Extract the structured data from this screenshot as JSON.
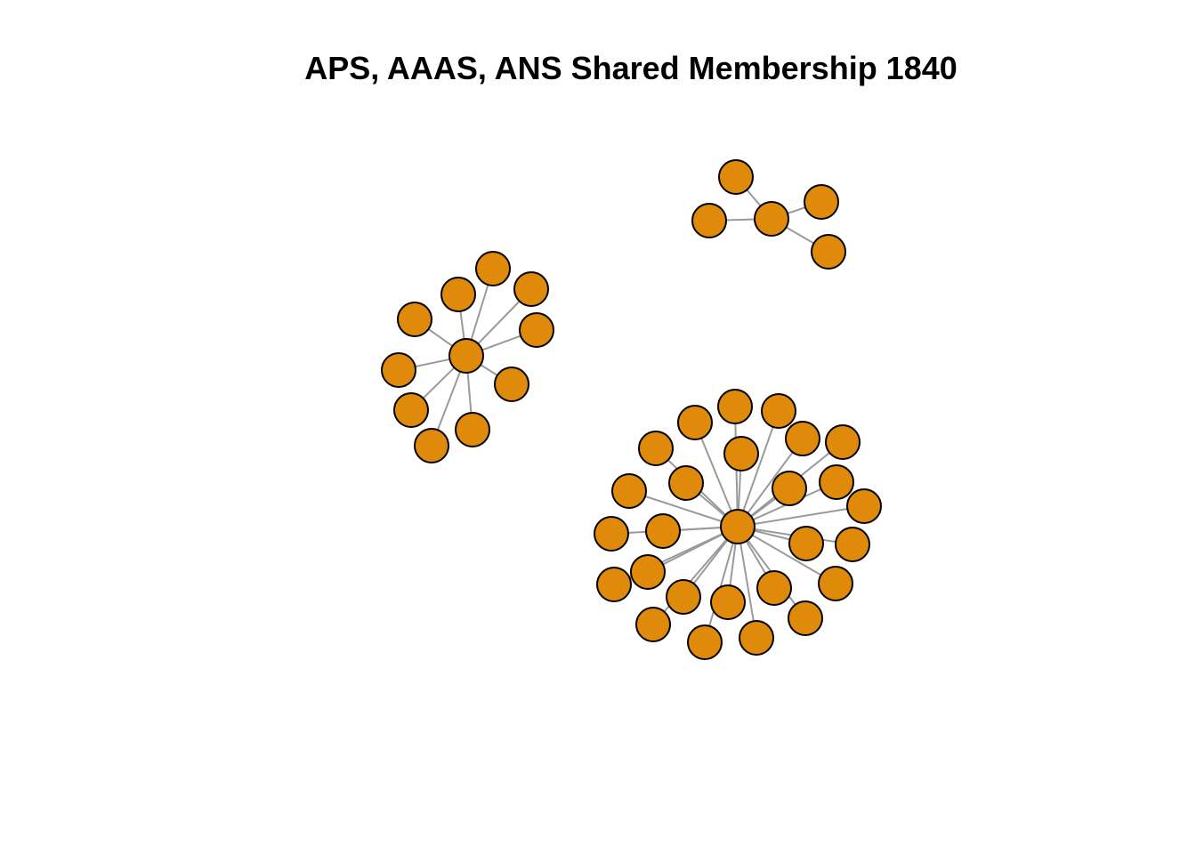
{
  "title": "APS, AAAS, ANS Shared Membership 1840",
  "colors": {
    "node_fill": "#e08a0b",
    "node_stroke": "#000000",
    "edge": "#9a9a9a",
    "background": "#ffffff"
  },
  "network": {
    "components": [
      {
        "name": "small-cluster",
        "hub": "s-hub",
        "leaves": [
          "s1",
          "s2",
          "s3",
          "s4"
        ]
      },
      {
        "name": "middle-cluster",
        "hub": "m-hub",
        "leaves": [
          "m1",
          "m2",
          "m3",
          "m4",
          "m5",
          "m6",
          "m7",
          "m8",
          "m9",
          "m10"
        ]
      },
      {
        "name": "large-cluster",
        "hub": "l-hub",
        "leaves": [
          "l1",
          "l2",
          "l3",
          "l4",
          "l5",
          "l6",
          "l7",
          "l8",
          "l9",
          "l10",
          "l11",
          "l12",
          "l13",
          "l14",
          "l15",
          "l16",
          "l17",
          "l18",
          "l19",
          "l20",
          "l21",
          "l22",
          "l23",
          "l24",
          "l25",
          "l26",
          "l27",
          "l28",
          "l29",
          "l30"
        ]
      }
    ]
  }
}
